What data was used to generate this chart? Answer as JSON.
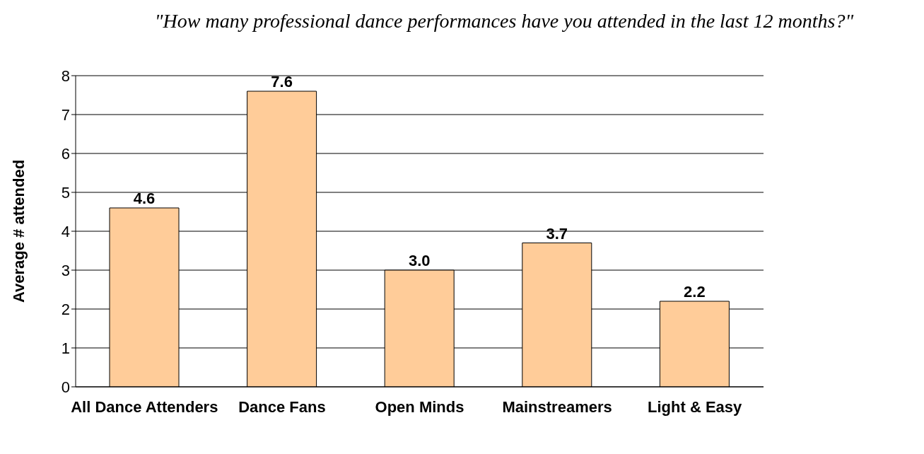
{
  "chart_data": {
    "type": "bar",
    "title": "\"How many professional dance performances have you attended in the last 12 months?\"",
    "ylabel": "Average # attended",
    "categories": [
      "All Dance Attenders",
      "Dance Fans",
      "Open Minds",
      "Mainstreamers",
      "Light & Easy"
    ],
    "values": [
      4.6,
      7.6,
      3.0,
      3.7,
      2.2
    ],
    "value_labels": [
      "4.6",
      "7.6",
      "3.0",
      "3.7",
      "2.2"
    ],
    "color": "#ffcc99",
    "ylim": [
      0,
      8
    ],
    "yticks": [
      0,
      1,
      2,
      3,
      4,
      5,
      6,
      7,
      8
    ],
    "grid": "y"
  }
}
